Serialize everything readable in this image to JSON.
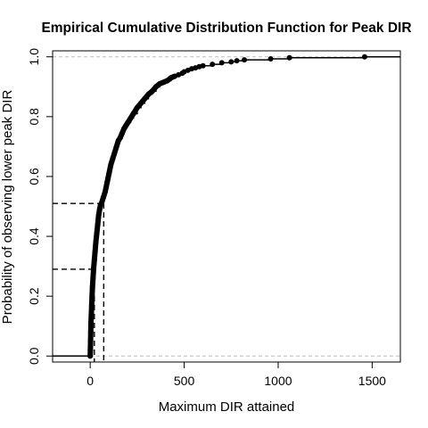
{
  "chart_data": {
    "type": "line",
    "title": "Empirical Cumulative Distribution Function for Peak DIR",
    "xlabel": "Maximum DIR attained",
    "ylabel": "Probability of observing lower peak DIR",
    "xlim": [
      -200,
      1650
    ],
    "ylim": [
      -0.02,
      1.02
    ],
    "x_ticks": [
      0,
      500,
      1000,
      1500
    ],
    "x_tick_labels": [
      "0",
      "500",
      "1000",
      "1500"
    ],
    "y_ticks": [
      0.0,
      0.2,
      0.4,
      0.6,
      0.8,
      1.0
    ],
    "y_tick_labels": [
      "0.0",
      "0.2",
      "0.4",
      "0.6",
      "0.8",
      "1.0"
    ],
    "grid": false,
    "legend": "none",
    "reference_hlines": [
      0,
      1
    ],
    "colors": {
      "points": "#000000",
      "reference": "#bbbbbb",
      "frame": "#000000"
    },
    "series": [
      {
        "ecdf_x": [
          0,
          1,
          2,
          3,
          4,
          6,
          8,
          10,
          12,
          15,
          18,
          22,
          26,
          30,
          35,
          40,
          45,
          50,
          55,
          60,
          70,
          80,
          90,
          100,
          110,
          120,
          130,
          140,
          150,
          160,
          170,
          180,
          190,
          200,
          215,
          230,
          250,
          270,
          290,
          310,
          330,
          350,
          370,
          390,
          410,
          430,
          450,
          470,
          490,
          500,
          520,
          540,
          560,
          580,
          600,
          650,
          700,
          750,
          780,
          820,
          960,
          1060,
          1460
        ],
        "ecdf_y": [
          0.0,
          0.02,
          0.05,
          0.08,
          0.11,
          0.14,
          0.17,
          0.2,
          0.23,
          0.26,
          0.29,
          0.32,
          0.35,
          0.38,
          0.41,
          0.44,
          0.47,
          0.49,
          0.505,
          0.51,
          0.53,
          0.55,
          0.58,
          0.61,
          0.64,
          0.66,
          0.68,
          0.7,
          0.72,
          0.73,
          0.745,
          0.76,
          0.77,
          0.78,
          0.795,
          0.81,
          0.83,
          0.845,
          0.86,
          0.875,
          0.885,
          0.9,
          0.91,
          0.915,
          0.92,
          0.93,
          0.935,
          0.94,
          0.945,
          0.95,
          0.955,
          0.96,
          0.963,
          0.967,
          0.97,
          0.975,
          0.98,
          0.983,
          0.987,
          0.99,
          0.993,
          0.997,
          1.0
        ]
      }
    ],
    "guide_lines": [
      {
        "x": 22,
        "y": 0.29
      },
      {
        "x": 72,
        "y": 0.51
      }
    ]
  }
}
